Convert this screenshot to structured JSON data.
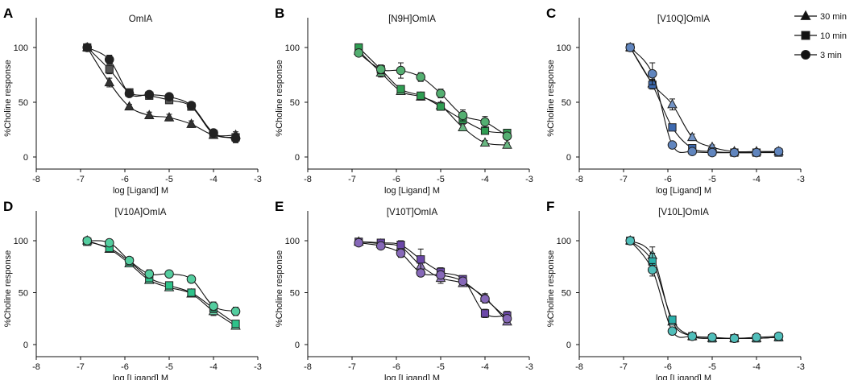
{
  "legend": {
    "items": [
      {
        "label": "30 min",
        "marker": "triangle"
      },
      {
        "label": "10 min",
        "marker": "square"
      },
      {
        "label": "3 min",
        "marker": "circle"
      }
    ]
  },
  "chart_data": [
    {
      "letter": "A",
      "type": "scatter",
      "title": "OmIA",
      "xlabel": "log [Ligand] M",
      "ylabel": "%Choline response",
      "xlim": [
        -8,
        -3
      ],
      "ylim": [
        0,
        100
      ],
      "xticks": [
        "-8",
        "-7",
        "-6",
        "-5",
        "-4",
        "-3"
      ],
      "yticks": [
        "0",
        "50",
        "100"
      ],
      "color": "#111111",
      "x": [
        -6.85,
        -6.35,
        -5.9,
        -5.45,
        -5.0,
        -4.5,
        -4.0,
        -3.5
      ],
      "series": [
        {
          "name": "30 min",
          "values": [
            100,
            68,
            46,
            38,
            36,
            30,
            20,
            20
          ],
          "errors": [
            2,
            4,
            2,
            3,
            3,
            3,
            2,
            3
          ]
        },
        {
          "name": "10 min",
          "values": [
            100,
            80,
            59,
            56,
            52,
            46,
            21,
            18
          ],
          "errors": [
            2,
            4,
            2,
            3,
            3,
            3,
            2,
            3
          ]
        },
        {
          "name": "3 min",
          "values": [
            100,
            89,
            58,
            57,
            55,
            47,
            22,
            17
          ],
          "errors": [
            2,
            4,
            2,
            3,
            3,
            3,
            2,
            4
          ]
        }
      ]
    },
    {
      "letter": "B",
      "type": "scatter",
      "title": "[N9H]OmIA",
      "xlabel": "log [Ligand] M",
      "ylabel": "%Choline response",
      "xlim": [
        -8,
        -3
      ],
      "ylim": [
        0,
        100
      ],
      "xticks": [
        "-8",
        "-7",
        "-6",
        "-5",
        "-4",
        "-3"
      ],
      "yticks": [
        "0",
        "50",
        "100"
      ],
      "color": "#2e9d52",
      "x": [
        -6.85,
        -6.35,
        -5.9,
        -5.45,
        -5.0,
        -4.5,
        -4.0,
        -3.5
      ],
      "series": [
        {
          "name": "30 min",
          "values": [
            97,
            77,
            60,
            55,
            47,
            27,
            13,
            11
          ],
          "errors": [
            3,
            4,
            3,
            3,
            3,
            3,
            2,
            2
          ]
        },
        {
          "name": "10 min",
          "values": [
            100,
            80,
            62,
            56,
            46,
            34,
            24,
            22
          ],
          "errors": [
            3,
            4,
            3,
            3,
            3,
            3,
            3,
            3
          ]
        },
        {
          "name": "3 min",
          "values": [
            95,
            80,
            79,
            73,
            58,
            38,
            32,
            19
          ],
          "errors": [
            3,
            4,
            7,
            4,
            4,
            5,
            5,
            3
          ]
        }
      ]
    },
    {
      "letter": "C",
      "type": "scatter",
      "title": "[V10Q]OmIA",
      "xlabel": "log [Ligand] M",
      "ylabel": "%Choline response",
      "xlim": [
        -8,
        -3
      ],
      "ylim": [
        0,
        100
      ],
      "xticks": [
        "-8",
        "-7",
        "-6",
        "-5",
        "-4",
        "-3"
      ],
      "yticks": [
        "0",
        "50",
        "100"
      ],
      "color": "#3d6ab0",
      "x": [
        -6.85,
        -6.35,
        -5.9,
        -5.45,
        -5.0,
        -4.5,
        -4.0,
        -3.5
      ],
      "series": [
        {
          "name": "30 min",
          "values": [
            100,
            67,
            48,
            18,
            9,
            5,
            5,
            5
          ],
          "errors": [
            2,
            4,
            5,
            3,
            2,
            1,
            1,
            1
          ]
        },
        {
          "name": "10 min",
          "values": [
            100,
            66,
            27,
            8,
            5,
            4,
            4,
            4
          ],
          "errors": [
            2,
            4,
            3,
            2,
            1,
            1,
            1,
            1
          ]
        },
        {
          "name": "3 min",
          "values": [
            100,
            76,
            11,
            5,
            4,
            4,
            4,
            5
          ],
          "errors": [
            2,
            10,
            2,
            1,
            1,
            1,
            1,
            1
          ]
        }
      ]
    },
    {
      "letter": "D",
      "type": "scatter",
      "title": "[V10A]OmIA",
      "xlabel": "log [Ligand] M",
      "ylabel": "%Choline response",
      "xlim": [
        -8,
        -3
      ],
      "ylim": [
        0,
        100
      ],
      "xticks": [
        "-8",
        "-7",
        "-6",
        "-5",
        "-4",
        "-3"
      ],
      "yticks": [
        "0",
        "50",
        "100"
      ],
      "color": "#2ec28a",
      "x": [
        -6.85,
        -6.35,
        -5.9,
        -5.45,
        -5.0,
        -4.5,
        -4.0,
        -3.5
      ],
      "series": [
        {
          "name": "30 min",
          "values": [
            100,
            92,
            78,
            62,
            55,
            49,
            32,
            18
          ],
          "errors": [
            2,
            3,
            3,
            3,
            2,
            2,
            4,
            3
          ]
        },
        {
          "name": "10 min",
          "values": [
            99,
            93,
            80,
            64,
            57,
            50,
            35,
            20
          ],
          "errors": [
            2,
            3,
            3,
            3,
            3,
            2,
            4,
            3
          ]
        },
        {
          "name": "3 min",
          "values": [
            100,
            98,
            81,
            68,
            68,
            63,
            37,
            32
          ],
          "errors": [
            2,
            2,
            3,
            4,
            3,
            3,
            4,
            4
          ]
        }
      ]
    },
    {
      "letter": "E",
      "type": "scatter",
      "title": "[V10T]OmIA",
      "xlabel": "log [Ligand] M",
      "ylabel": "%Choline response",
      "xlim": [
        -8,
        -3
      ],
      "ylim": [
        0,
        100
      ],
      "xticks": [
        "-8",
        "-7",
        "-6",
        "-5",
        "-4",
        "-3"
      ],
      "yticks": [
        "0",
        "50",
        "100"
      ],
      "color": "#6b47a8",
      "x": [
        -6.85,
        -6.35,
        -5.9,
        -5.45,
        -5.0,
        -4.5,
        -4.0,
        -3.5
      ],
      "series": [
        {
          "name": "30 min",
          "values": [
            99,
            97,
            94,
            76,
            64,
            59,
            45,
            22
          ],
          "errors": [
            2,
            3,
            4,
            6,
            5,
            3,
            4,
            3
          ]
        },
        {
          "name": "10 min",
          "values": [
            99,
            98,
            96,
            82,
            70,
            63,
            30,
            28
          ],
          "errors": [
            2,
            3,
            4,
            10,
            4,
            3,
            4,
            4
          ]
        },
        {
          "name": "3 min",
          "values": [
            98,
            95,
            88,
            69,
            67,
            61,
            44,
            25
          ],
          "errors": [
            2,
            3,
            4,
            3,
            3,
            3,
            4,
            3
          ]
        }
      ]
    },
    {
      "letter": "F",
      "type": "scatter",
      "title": "[V10L]OmIA",
      "xlabel": "log [Ligand] M",
      "ylabel": "%Choline response",
      "xlim": [
        -8,
        -3
      ],
      "ylim": [
        0,
        100
      ],
      "xticks": [
        "-8",
        "-7",
        "-6",
        "-5",
        "-4",
        "-3"
      ],
      "yticks": [
        "0",
        "50",
        "100"
      ],
      "color": "#2ab0ab",
      "x": [
        -6.85,
        -6.35,
        -5.9,
        -5.45,
        -5.0,
        -4.5,
        -4.0,
        -3.5
      ],
      "series": [
        {
          "name": "30 min",
          "values": [
            100,
            86,
            22,
            8,
            6,
            6,
            6,
            7
          ],
          "errors": [
            2,
            8,
            3,
            2,
            1,
            1,
            1,
            1
          ]
        },
        {
          "name": "10 min",
          "values": [
            100,
            80,
            24,
            8,
            6,
            6,
            6,
            7
          ],
          "errors": [
            2,
            8,
            3,
            2,
            1,
            1,
            1,
            1
          ]
        },
        {
          "name": "3 min",
          "values": [
            100,
            72,
            13,
            8,
            7,
            6,
            7,
            8
          ],
          "errors": [
            2,
            6,
            3,
            2,
            1,
            1,
            1,
            1
          ]
        }
      ]
    }
  ]
}
